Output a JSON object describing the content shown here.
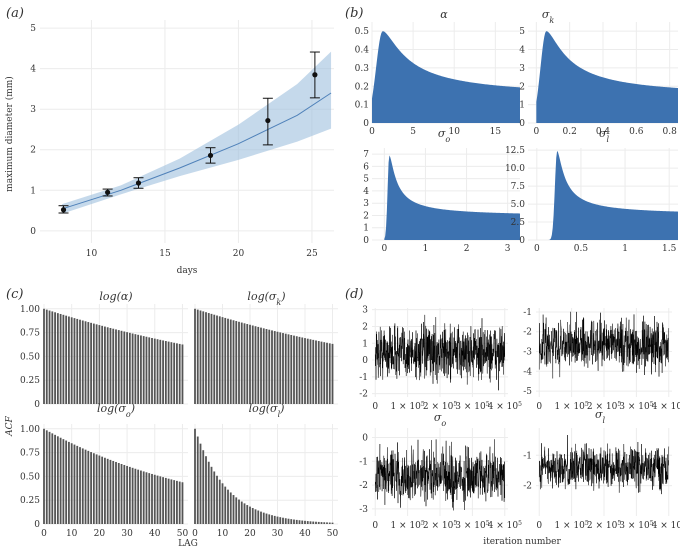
{
  "figure": {
    "panel_labels": [
      "(a)",
      "(b)",
      "(c)",
      "(d)"
    ]
  },
  "chart_data": [
    {
      "id": "a",
      "type": "scatter",
      "title": "",
      "xlabel": "days",
      "ylabel": "maximum diameter (mm)",
      "xlim": [
        6.5,
        26.5
      ],
      "ylim": [
        -0.3,
        5.2
      ],
      "xticks": [
        10,
        15,
        20,
        25
      ],
      "yticks": [
        0,
        1,
        2,
        3,
        4,
        5
      ],
      "points": [
        {
          "x": 8.1,
          "y": 0.52,
          "lo": 0.44,
          "hi": 0.62
        },
        {
          "x": 11.1,
          "y": 0.95,
          "lo": 0.86,
          "hi": 1.03
        },
        {
          "x": 13.2,
          "y": 1.18,
          "lo": 1.05,
          "hi": 1.31
        },
        {
          "x": 18.1,
          "y": 1.86,
          "lo": 1.67,
          "hi": 2.05
        },
        {
          "x": 22.0,
          "y": 2.72,
          "lo": 2.12,
          "hi": 3.27
        },
        {
          "x": 25.2,
          "y": 3.85,
          "lo": 3.28,
          "hi": 4.41
        }
      ],
      "fit": {
        "x": [
          8,
          12,
          16,
          20,
          24,
          26.3
        ],
        "y": [
          0.54,
          1.0,
          1.55,
          2.15,
          2.85,
          3.4
        ]
      },
      "band": {
        "x": [
          8,
          12,
          16,
          20,
          24,
          26.3
        ],
        "lower": [
          0.42,
          0.9,
          1.35,
          1.75,
          2.2,
          2.52
        ],
        "upper": [
          0.66,
          1.12,
          1.78,
          2.62,
          3.62,
          4.42
        ]
      },
      "colors": {
        "band": "#9fbfde",
        "line": "#4f81b9",
        "points": "#111111"
      }
    },
    {
      "id": "b",
      "type": "area",
      "colors": {
        "fill": "#3d72b0"
      },
      "panels": [
        {
          "title": "α",
          "xlim": [
            0,
            18
          ],
          "ylim": [
            0,
            0.55
          ],
          "xticks": [
            0,
            5,
            10,
            15
          ],
          "yticks": [
            0,
            0.1,
            0.2,
            0.3,
            0.4,
            0.5
          ],
          "mode": 1.3,
          "peak": 0.5,
          "rise": 0.8,
          "decay": 1.7,
          "shape": 1.6
        },
        {
          "title": "σ",
          "title_sub": "k",
          "xlim": [
            -0.05,
            0.85
          ],
          "ylim": [
            0,
            5.5
          ],
          "xticks": [
            0,
            0.2,
            0.4,
            0.6,
            0.8
          ],
          "yticks": [
            0,
            1,
            2,
            3,
            4,
            5
          ],
          "mode": 0.06,
          "peak": 5.0,
          "rise": 0.035,
          "decay": 0.075,
          "shape": 1.6
        },
        {
          "title": "σ",
          "title_sub": "o",
          "xlim": [
            -0.3,
            3.3
          ],
          "ylim": [
            0,
            7.5
          ],
          "xticks": [
            0,
            1,
            2,
            3
          ],
          "yticks": [
            0,
            1,
            2,
            3,
            4,
            5,
            6,
            7
          ],
          "mode": 0.12,
          "peak": 6.9,
          "rise": 0.04,
          "decay": 0.1,
          "shape": 1.6
        },
        {
          "title": "σ",
          "title_sub": "l",
          "xlim": [
            -0.1,
            1.6
          ],
          "ylim": [
            0,
            12.8
          ],
          "xticks": [
            0,
            0.5,
            1.0,
            1.5
          ],
          "ytick_labels": [
            "0",
            "2.5",
            "5.0",
            "7.5",
            "10.0",
            "12.5"
          ],
          "yticks": [
            0,
            2.5,
            5,
            7.5,
            10,
            12.5
          ],
          "mode": 0.23,
          "peak": 12.4,
          "rise": 0.025,
          "decay": 0.05,
          "shape": 1.6
        }
      ]
    },
    {
      "id": "c",
      "type": "bar",
      "xlabel": "LAG",
      "ylabel": "ACF",
      "xlim": [
        0,
        52
      ],
      "ylim": [
        0,
        1.05
      ],
      "xticks": [
        0,
        10,
        20,
        30,
        40,
        50
      ],
      "yticks": [
        0,
        0.25,
        0.5,
        0.75,
        1.0
      ],
      "ytick_labels": [
        "0",
        "0.25",
        "0.50",
        "0.75",
        "1.00"
      ],
      "lags": 51,
      "colors": {
        "bars": "#555555"
      },
      "panels": [
        {
          "title": "log(α)",
          "decay_rate": 0.0094
        },
        {
          "title": "log(σ",
          "title_sub": "k",
          "title_end": ")",
          "decay_rate": 0.0092
        },
        {
          "title": "log(σ",
          "title_sub": "o",
          "title_end": ")",
          "decay_rate": 0.0165
        },
        {
          "title": "log(σ",
          "title_sub": "l",
          "title_end": ")",
          "decay_rate": 0.085
        }
      ]
    },
    {
      "id": "d",
      "type": "line",
      "xlabel": "iteration number",
      "xlim": [
        -10000,
        410000
      ],
      "xticks": [
        0,
        100000,
        200000,
        300000,
        400000
      ],
      "colors": {
        "trace": "#000000"
      },
      "panels": [
        {
          "title": "",
          "ylim": [
            -2.2,
            3.1
          ],
          "yticks": [
            -2,
            -1,
            0,
            1,
            2,
            3
          ],
          "center": 0.45,
          "spread": 0.8
        },
        {
          "title": "",
          "ylim": [
            -5.3,
            -0.8
          ],
          "yticks": [
            -5,
            -4,
            -3,
            -2,
            -1
          ],
          "center": -2.65,
          "spread": 0.6
        },
        {
          "title": "σ",
          "title_sub": "o",
          "ylim": [
            -3.3,
            0.4
          ],
          "yticks": [
            -3,
            -2,
            -1,
            0
          ],
          "center": -1.6,
          "spread": 0.55
        },
        {
          "title": "σ",
          "title_sub": "l",
          "ylim": [
            -3.0,
            -0.1
          ],
          "yticks": [
            -2,
            -1
          ],
          "center": -1.4,
          "spread": 0.35
        }
      ]
    }
  ]
}
